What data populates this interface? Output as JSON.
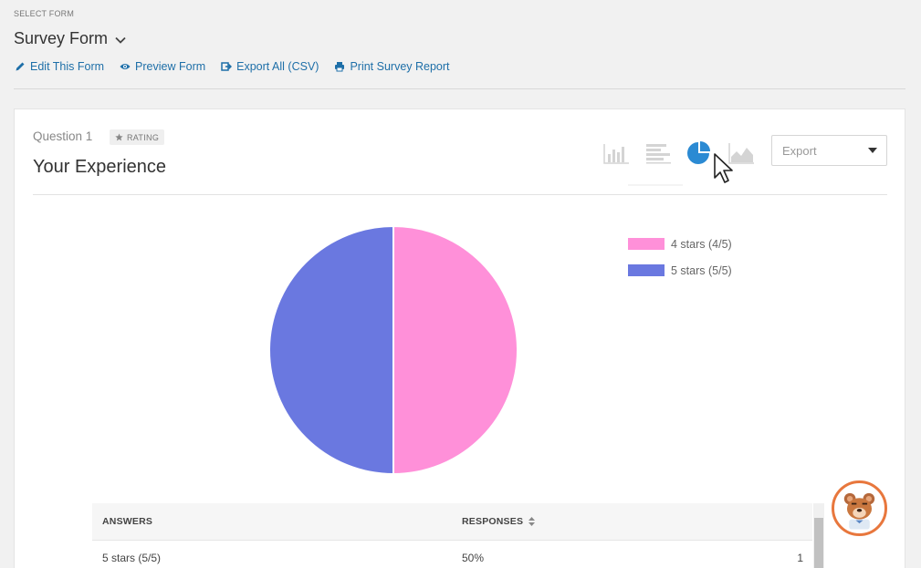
{
  "header": {
    "select_label": "SELECT FORM",
    "form_name": "Survey Form",
    "links": [
      {
        "label": "Edit This Form",
        "icon": "pencil-icon"
      },
      {
        "label": "Preview Form",
        "icon": "eye-icon"
      },
      {
        "label": "Export All (CSV)",
        "icon": "export-icon"
      },
      {
        "label": "Print Survey Report",
        "icon": "print-icon"
      }
    ]
  },
  "question": {
    "number_label": "Question 1",
    "type_badge": "RATING",
    "title": "Your Experience",
    "chart_types": [
      "bar-chart-icon",
      "horizontal-bar-chart-icon",
      "pie-chart-icon",
      "area-chart-icon"
    ],
    "active_chart_type": "pie-chart-icon",
    "export_label": "Export"
  },
  "colors": {
    "accent": "#1e6fa8",
    "pie_active_icon": "#2b8ad3",
    "series_4_stars": "#ff90d9",
    "series_5_stars": "#6a78e0"
  },
  "chart_data": {
    "type": "pie",
    "title": "",
    "legend_position": "right",
    "slices": [
      {
        "label": "4 stars (4/5)",
        "value": 50,
        "color": "#ff90d9"
      },
      {
        "label": "5 stars (5/5)",
        "value": 50,
        "color": "#6a78e0"
      }
    ]
  },
  "table": {
    "headers": [
      "ANSWERS",
      "RESPONSES",
      ""
    ],
    "rows": [
      {
        "answer": "5 stars (5/5)",
        "percent": "50%",
        "count": "1"
      }
    ]
  }
}
